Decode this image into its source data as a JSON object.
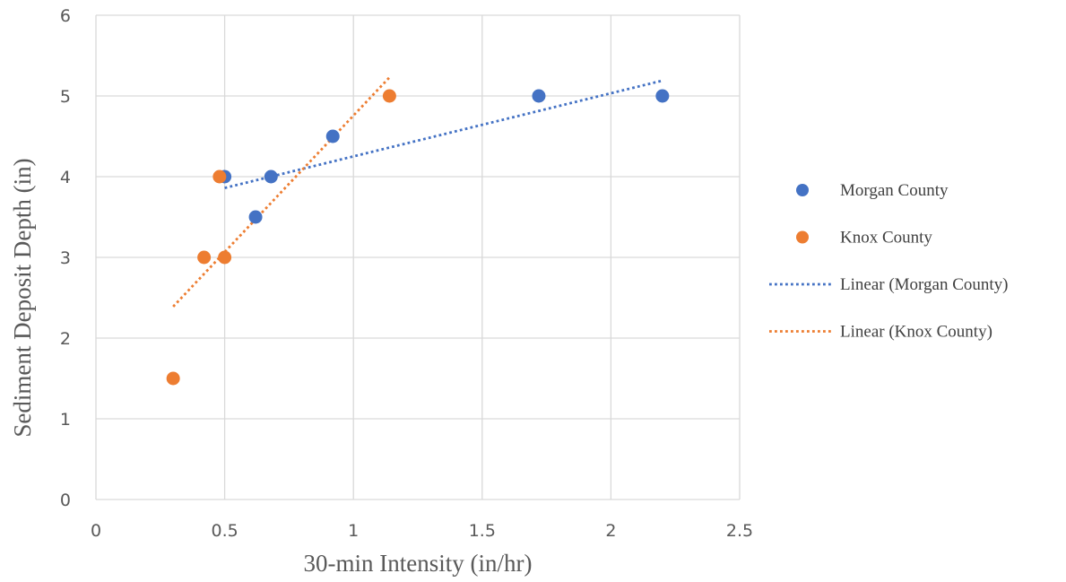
{
  "chart_data": {
    "type": "scatter",
    "title": "",
    "xlabel": "30-min Intensity (in/hr)",
    "ylabel": "Sediment Deposit Depth (in)",
    "xlim": [
      0,
      2.5
    ],
    "ylim": [
      0,
      6
    ],
    "x_ticks": [
      "0",
      "0.5",
      "1",
      "1.5",
      "2",
      "2.5"
    ],
    "y_ticks": [
      "0",
      "1",
      "2",
      "3",
      "4",
      "5",
      "6"
    ],
    "grid": true,
    "legend_position": "right",
    "series": [
      {
        "name": "Morgan County",
        "color": "#4472C4",
        "points": [
          {
            "x": 0.5,
            "y": 4
          },
          {
            "x": 0.62,
            "y": 3.5
          },
          {
            "x": 0.68,
            "y": 4
          },
          {
            "x": 0.92,
            "y": 4.5
          },
          {
            "x": 1.72,
            "y": 5
          },
          {
            "x": 2.2,
            "y": 5
          }
        ]
      },
      {
        "name": "Knox County",
        "color": "#ED7D31",
        "points": [
          {
            "x": 0.3,
            "y": 1.5
          },
          {
            "x": 0.42,
            "y": 3
          },
          {
            "x": 0.48,
            "y": 4
          },
          {
            "x": 0.5,
            "y": 3
          },
          {
            "x": 1.14,
            "y": 5
          }
        ]
      }
    ],
    "trendlines": [
      {
        "name": "Linear (Morgan County)",
        "color": "#4472C4",
        "style": "dotted",
        "x": [
          0.5,
          2.2
        ],
        "y": [
          3.86,
          5.19
        ]
      },
      {
        "name": "Linear (Knox County)",
        "color": "#ED7D31",
        "style": "dotted",
        "x": [
          0.3,
          1.14
        ],
        "y": [
          2.39,
          5.23
        ]
      }
    ]
  }
}
